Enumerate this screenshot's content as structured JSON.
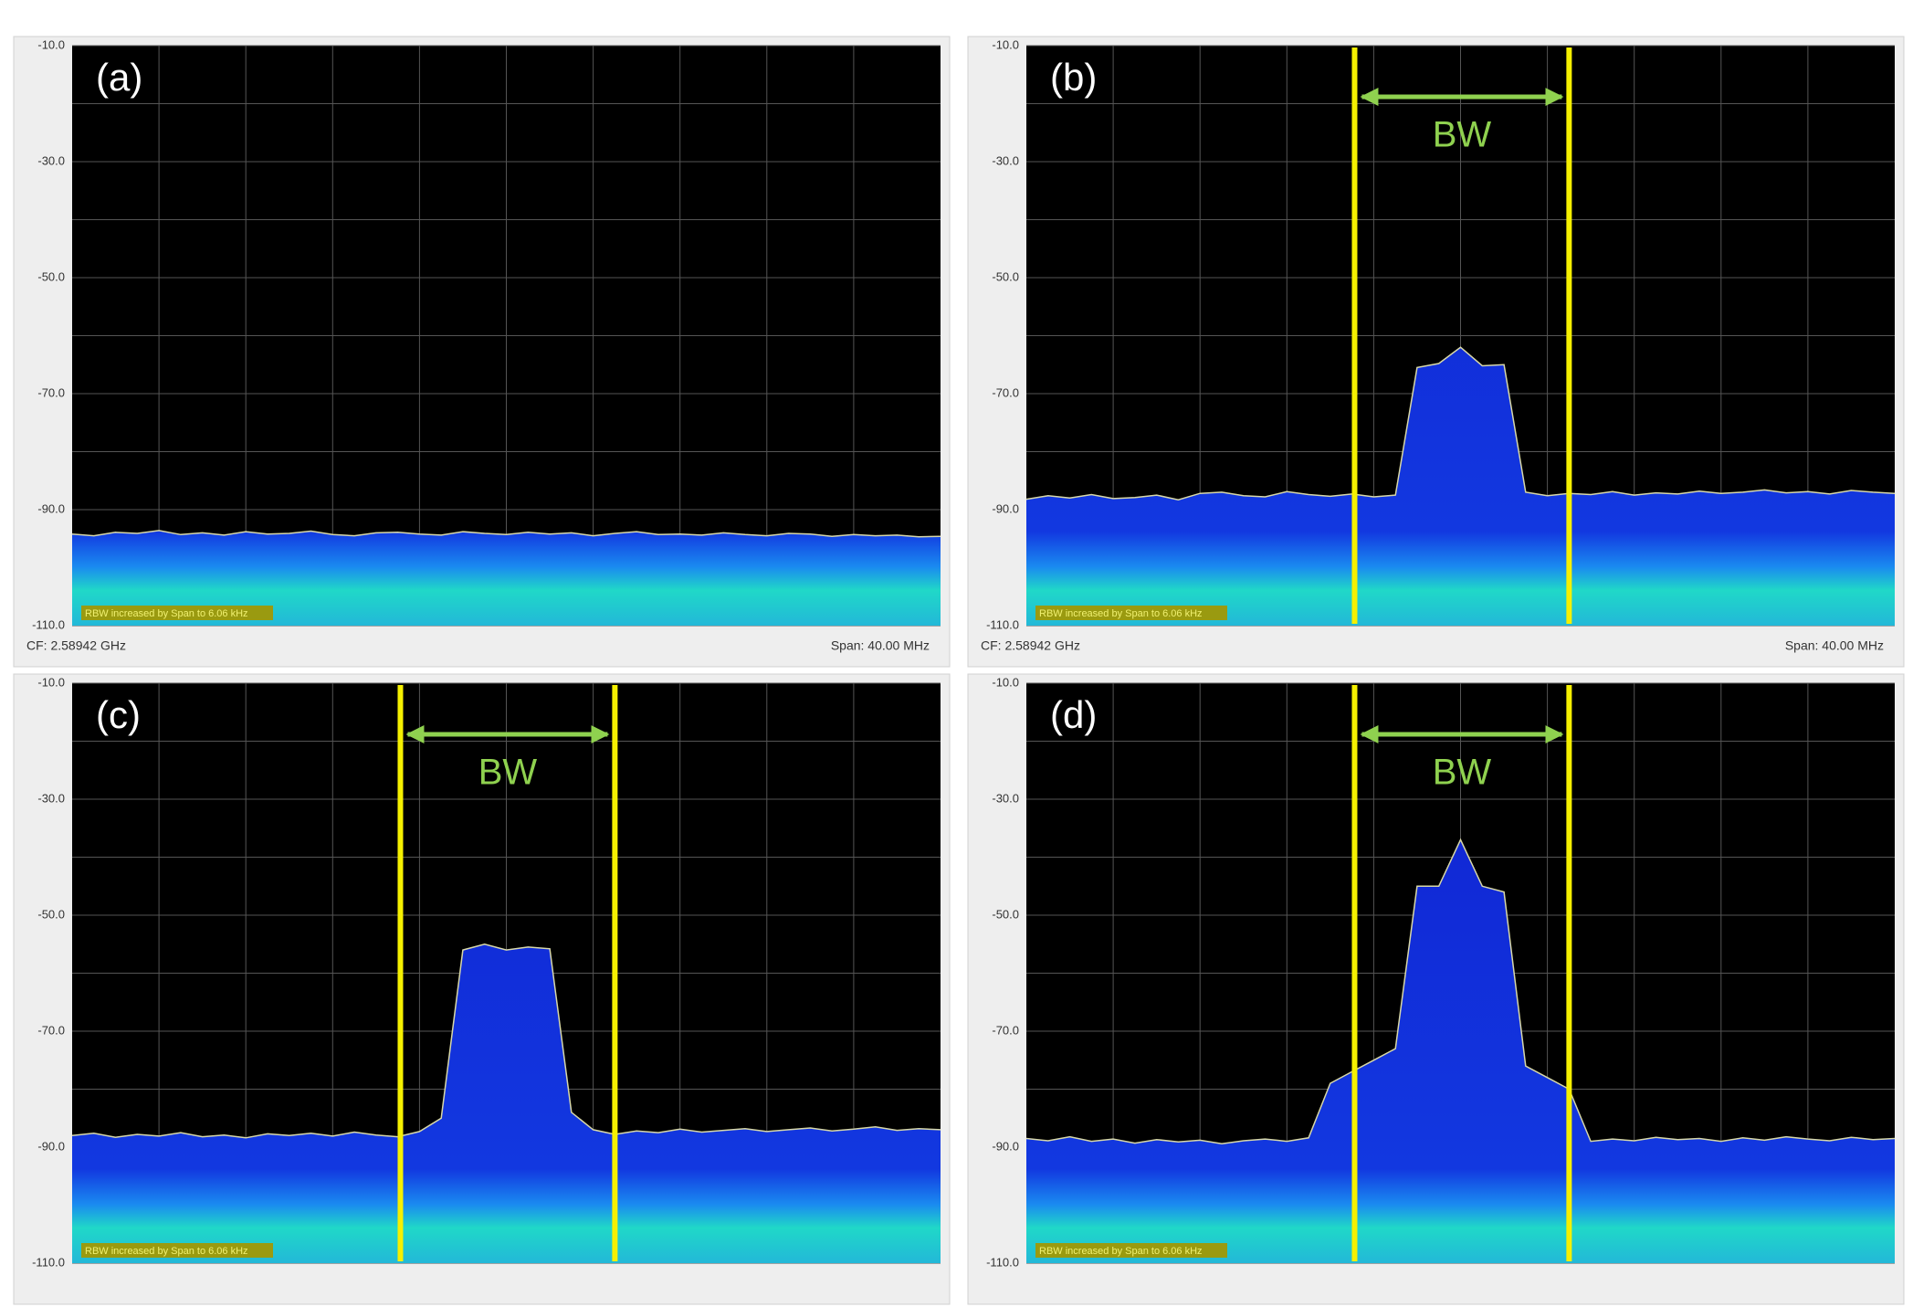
{
  "chart_data": [
    {
      "type": "line",
      "label": "(a)",
      "color": "#d8d8a8",
      "grid": true,
      "ylim": [
        -110,
        -10
      ],
      "yticks": [
        {
          "value": -10,
          "label": "-10.0"
        },
        {
          "value": -30,
          "label": "-30.0"
        },
        {
          "value": -50,
          "label": "-50.0"
        },
        {
          "value": -70,
          "label": "-70.0"
        },
        {
          "value": -90,
          "label": "-90.0"
        },
        {
          "value": -110,
          "label": "-110.0"
        }
      ],
      "categories": [
        null,
        null,
        null,
        null,
        null,
        null,
        null,
        null,
        null,
        null,
        null,
        null,
        null,
        null,
        null,
        null,
        null,
        null,
        null,
        null,
        null,
        null,
        null,
        null,
        null,
        null,
        null,
        null,
        null,
        null,
        null,
        null,
        null,
        null,
        null,
        null,
        null,
        null,
        null,
        null,
        null
      ],
      "values": [
        -94.2,
        -94.5,
        -93.9,
        -94.1,
        -93.6,
        -94.3,
        -94.0,
        -94.4,
        -93.8,
        -94.2,
        -94.1,
        -93.7,
        -94.3,
        -94.5,
        -94.0,
        -93.9,
        -94.2,
        -94.4,
        -93.8,
        -94.1,
        -94.3,
        -93.9,
        -94.2,
        -94.0,
        -94.5,
        -94.1,
        -93.8,
        -94.3,
        -94.2,
        -94.4,
        -94.0,
        -94.3,
        -94.5,
        -94.1,
        -94.2,
        -94.6,
        -94.3,
        -94.5,
        -94.4,
        -94.7,
        -94.6
      ],
      "note": "RBW increased by Span to 6.06 kHz",
      "footer_left": "CF: 2.58942 GHz",
      "footer_right": "Span: 40.00 MHz"
    },
    {
      "type": "line",
      "label": "(b)",
      "annotation": "BW",
      "color": "#d8d8a8",
      "grid": true,
      "ylim": [
        -110,
        -10
      ],
      "yticks": [
        {
          "value": -10,
          "label": "-10.0"
        },
        {
          "value": -30,
          "label": "-30.0"
        },
        {
          "value": -50,
          "label": "-50.0"
        },
        {
          "value": -70,
          "label": "-70.0"
        },
        {
          "value": -90,
          "label": "-90.0"
        },
        {
          "value": -110,
          "label": "-110.0"
        }
      ],
      "categories": [
        null,
        null,
        null,
        null,
        null,
        null,
        null,
        null,
        null,
        null,
        null,
        null,
        null,
        null,
        null,
        null,
        null,
        null,
        null,
        null,
        null,
        null,
        null,
        null,
        null,
        null,
        null,
        null,
        null,
        null,
        null,
        null,
        null,
        null,
        null,
        null,
        null,
        null,
        null,
        null,
        null
      ],
      "values": [
        -88.2,
        -87.6,
        -88.0,
        -87.4,
        -88.1,
        -87.9,
        -87.5,
        -88.3,
        -87.2,
        -87.0,
        -87.6,
        -87.8,
        -86.9,
        -87.4,
        -87.7,
        -87.3,
        -87.8,
        -87.5,
        -65.5,
        -64.8,
        -62.0,
        -65.2,
        -65.0,
        -87.0,
        -87.6,
        -87.2,
        -87.4,
        -86.9,
        -87.5,
        -87.1,
        -87.3,
        -86.8,
        -87.2,
        -87.0,
        -86.6,
        -87.1,
        -86.9,
        -87.3,
        -86.7,
        -87.0,
        -87.2
      ],
      "note": "RBW increased by Span to 6.06 kHz",
      "footer_left": "CF: 2.58942 GHz",
      "footer_right": "Span: 40.00 MHz"
    },
    {
      "type": "line",
      "label": "(c)",
      "annotation": "BW",
      "color": "#d8d8a8",
      "grid": true,
      "ylim": [
        -110,
        -10
      ],
      "yticks": [
        {
          "value": -10,
          "label": "-10.0"
        },
        {
          "value": -30,
          "label": "-30.0"
        },
        {
          "value": -50,
          "label": "-50.0"
        },
        {
          "value": -70,
          "label": "-70.0"
        },
        {
          "value": -90,
          "label": "-90.0"
        },
        {
          "value": -110,
          "label": "-110.0"
        }
      ],
      "categories": [
        null,
        null,
        null,
        null,
        null,
        null,
        null,
        null,
        null,
        null,
        null,
        null,
        null,
        null,
        null,
        null,
        null,
        null,
        null,
        null,
        null,
        null,
        null,
        null,
        null,
        null,
        null,
        null,
        null,
        null,
        null,
        null,
        null,
        null,
        null,
        null,
        null,
        null,
        null,
        null,
        null
      ],
      "values": [
        -88.0,
        -87.6,
        -88.3,
        -87.8,
        -88.1,
        -87.5,
        -88.2,
        -87.9,
        -88.4,
        -87.7,
        -88.0,
        -87.6,
        -88.1,
        -87.4,
        -87.9,
        -88.2,
        -87.3,
        -85.0,
        -56.0,
        -55.0,
        -56.0,
        -55.5,
        -55.8,
        -84.0,
        -87.0,
        -87.8,
        -87.2,
        -87.5,
        -86.9,
        -87.4,
        -87.1,
        -86.8,
        -87.3,
        -87.0,
        -86.7,
        -87.2,
        -86.9,
        -86.5,
        -87.1,
        -86.8,
        -87.0
      ],
      "note": "RBW increased by Span to 6.06 kHz"
    },
    {
      "type": "line",
      "label": "(d)",
      "annotation": "BW",
      "color": "#d8d8a8",
      "grid": true,
      "ylim": [
        -110,
        -10
      ],
      "yticks": [
        {
          "value": -10,
          "label": "-10.0"
        },
        {
          "value": -30,
          "label": "-30.0"
        },
        {
          "value": -50,
          "label": "-50.0"
        },
        {
          "value": -70,
          "label": "-70.0"
        },
        {
          "value": -90,
          "label": "-90.0"
        },
        {
          "value": -110,
          "label": "-110.0"
        }
      ],
      "categories": [
        null,
        null,
        null,
        null,
        null,
        null,
        null,
        null,
        null,
        null,
        null,
        null,
        null,
        null,
        null,
        null,
        null,
        null,
        null,
        null,
        null,
        null,
        null,
        null,
        null,
        null,
        null,
        null,
        null,
        null,
        null,
        null,
        null,
        null,
        null,
        null,
        null,
        null,
        null,
        null,
        null
      ],
      "values": [
        -88.5,
        -88.9,
        -88.2,
        -89.0,
        -88.6,
        -89.3,
        -88.7,
        -89.1,
        -88.8,
        -89.4,
        -88.9,
        -88.6,
        -89.0,
        -88.4,
        -79.0,
        -77.0,
        -75.0,
        -73.0,
        -45.0,
        -45.0,
        -37.0,
        -45.0,
        -46.0,
        -76.0,
        -78.0,
        -80.0,
        -89.0,
        -88.6,
        -88.9,
        -88.3,
        -88.7,
        -88.5,
        -89.0,
        -88.4,
        -88.8,
        -88.2,
        -88.6,
        -88.9,
        -88.3,
        -88.7,
        -88.5
      ],
      "note": "RBW increased by Span to 6.06 kHz"
    }
  ]
}
